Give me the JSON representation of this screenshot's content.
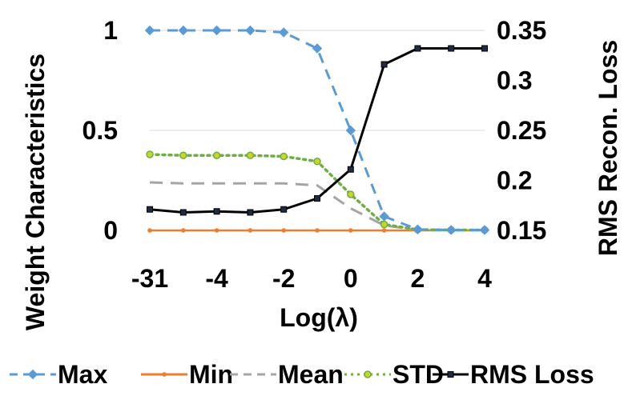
{
  "chart_data": {
    "type": "line",
    "title": "",
    "xlabel": "Log(λ)",
    "ylabel": "Weight Characteristics",
    "y2label": "RMS Recon. Loss",
    "x": [
      -31,
      -5,
      -4,
      -3,
      -2,
      -1,
      0,
      1,
      2,
      3,
      4
    ],
    "x_tick_labels": [
      {
        "x": -31,
        "label": "-31"
      },
      {
        "x": -4,
        "label": "-4"
      },
      {
        "x": -2,
        "label": "-2"
      },
      {
        "x": 0,
        "label": "0"
      },
      {
        "x": 2,
        "label": "2"
      },
      {
        "x": 4,
        "label": "4"
      }
    ],
    "ylim": [
      0,
      1
    ],
    "y_ticks": [
      {
        "value": 0,
        "label": "0"
      },
      {
        "value": 0.5,
        "label": "0.5"
      },
      {
        "value": 1,
        "label": "1"
      }
    ],
    "y2lim": [
      0.15,
      0.35
    ],
    "y2_ticks": [
      {
        "value": 0.15,
        "label": "0.15"
      },
      {
        "value": 0.2,
        "label": "0.2"
      },
      {
        "value": 0.25,
        "label": "0.25"
      },
      {
        "value": 0.3,
        "label": "0.3"
      },
      {
        "value": 0.35,
        "label": "0.35"
      }
    ],
    "grid": true,
    "legend_position": "bottom",
    "series": [
      {
        "name": "Max",
        "axis": "left",
        "color": "#5B9BD5",
        "marker": "diamond",
        "dash": "dashed",
        "values": [
          1.0,
          1.0,
          1.0,
          1.0,
          0.99,
          0.91,
          0.5,
          0.07,
          0.005,
          0.002,
          0.002
        ]
      },
      {
        "name": "Min",
        "axis": "left",
        "color": "#ED7D31",
        "marker": "dot",
        "dash": "solid",
        "values": [
          0,
          0,
          0,
          0,
          0,
          0,
          0,
          0,
          0,
          0,
          0
        ]
      },
      {
        "name": "Mean",
        "axis": "left",
        "color": "#A5A5A5",
        "marker": "none",
        "dash": "longdash",
        "values": [
          0.24,
          0.235,
          0.235,
          0.235,
          0.235,
          0.225,
          0.11,
          0.025,
          0.002,
          0.001,
          0.001
        ]
      },
      {
        "name": "STD",
        "axis": "left",
        "color": "#70AD47",
        "marker": "circle",
        "dash": "dotted",
        "values": [
          0.38,
          0.375,
          0.375,
          0.375,
          0.37,
          0.345,
          0.18,
          0.03,
          0.004,
          0.002,
          0.002
        ]
      },
      {
        "name": "RMS Loss",
        "axis": "right",
        "color": "#000000",
        "marker": "square",
        "dash": "solid",
        "values": [
          0.171,
          0.168,
          0.169,
          0.168,
          0.171,
          0.182,
          0.211,
          0.316,
          0.332,
          0.332,
          0.332
        ]
      }
    ]
  }
}
